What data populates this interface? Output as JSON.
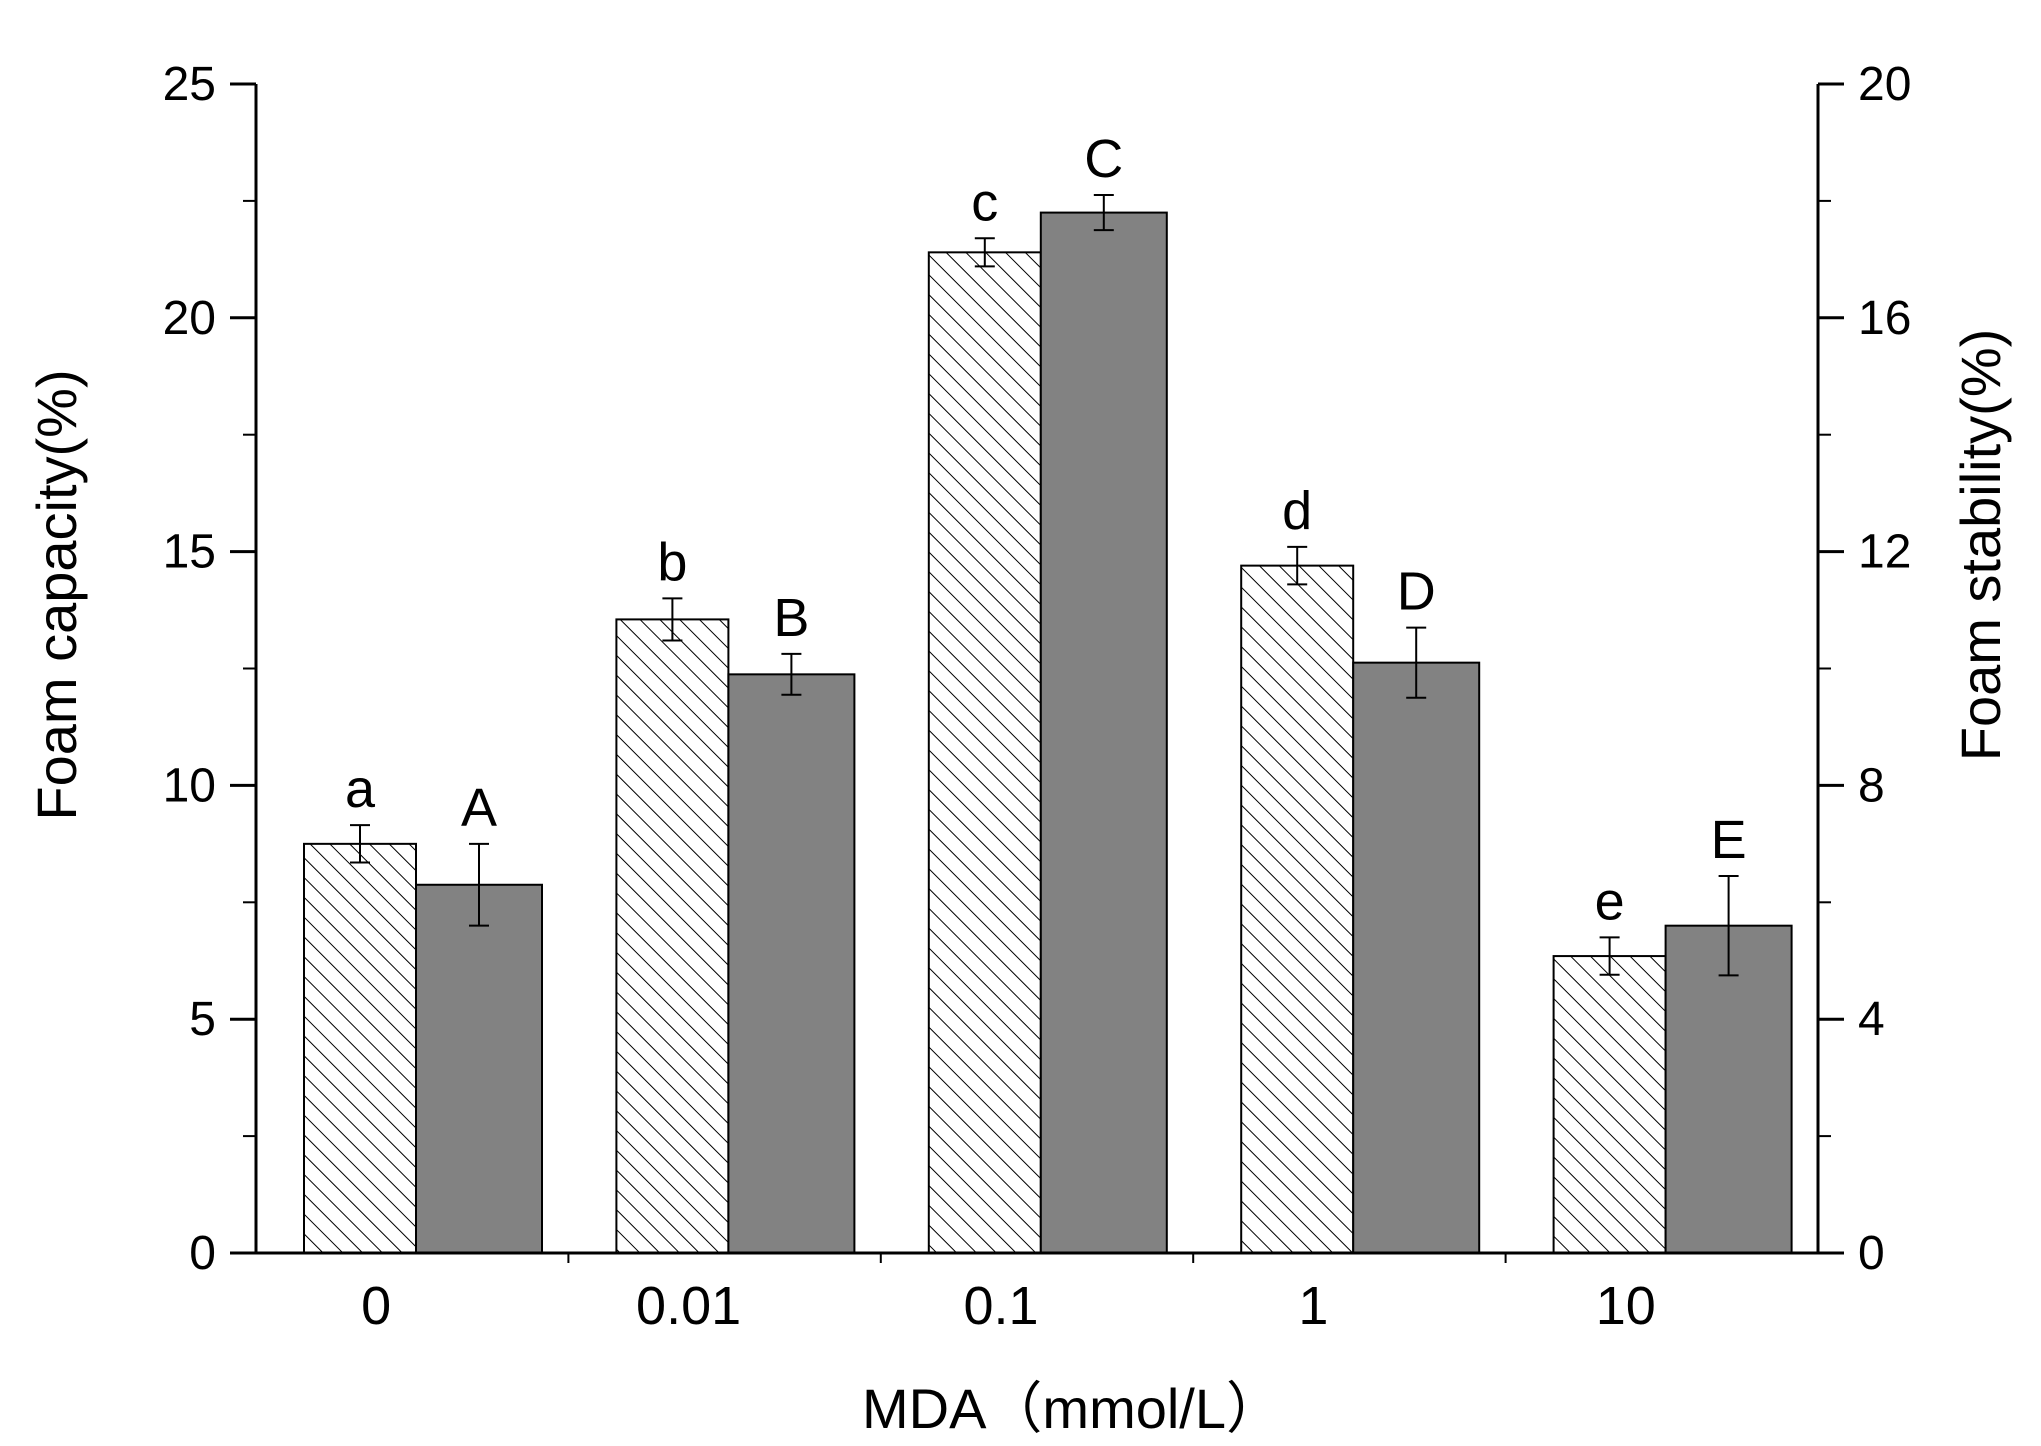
{
  "chart_data": {
    "type": "bar",
    "title": "",
    "xlabel": "MDA（mmol/L）",
    "ylabel": "Foam capacity(%)",
    "y2label": "Foam stability(%)",
    "categories": [
      "0",
      "0.01",
      "0.1",
      "1",
      "10"
    ],
    "ylim": [
      0,
      25
    ],
    "y2lim": [
      0,
      20
    ],
    "yticks": [
      0,
      5,
      10,
      15,
      20,
      25
    ],
    "y2ticks": [
      0,
      4,
      8,
      12,
      16,
      20
    ],
    "grid": false,
    "legend": "none",
    "series": [
      {
        "name": "Foam capacity",
        "axis": "left",
        "pattern": "hatched",
        "values": [
          8.75,
          13.55,
          21.4,
          14.7,
          6.35
        ],
        "errors": [
          0.4,
          0.45,
          0.3,
          0.4,
          0.4
        ],
        "labels": [
          "a",
          "b",
          "c",
          "d",
          "e"
        ]
      },
      {
        "name": "Foam stability",
        "axis": "right",
        "pattern": "solid",
        "color": "#828282",
        "values": [
          6.3,
          9.9,
          17.8,
          10.1,
          5.6
        ],
        "errors": [
          0.7,
          0.35,
          0.3,
          0.6,
          0.85
        ],
        "labels": [
          "A",
          "B",
          "C",
          "D",
          "E"
        ]
      }
    ]
  }
}
